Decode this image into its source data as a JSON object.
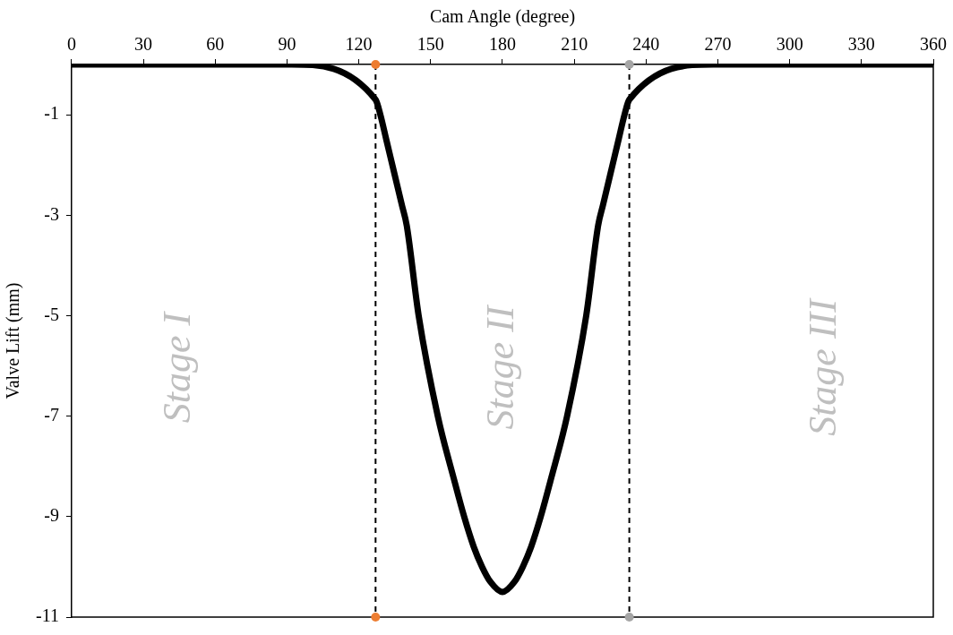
{
  "chart_data": {
    "type": "line",
    "xlabel": "Cam Angle (degree)",
    "ylabel": "Valve Lift (mm)",
    "xlim": [
      0,
      360
    ],
    "xticks": [
      0,
      30,
      60,
      90,
      120,
      150,
      180,
      210,
      240,
      270,
      300,
      330,
      360
    ],
    "ylim": [
      -11,
      0
    ],
    "yticks": [
      -11,
      -9,
      -7,
      -5,
      -3,
      -1
    ],
    "grid": false,
    "legend": false,
    "series": [
      {
        "color": "#000000",
        "marker": "none",
        "line_style": "solid",
        "x": [
          0,
          92,
          127,
          129,
          131.5,
          135,
          138,
          140,
          145,
          153,
          160,
          164,
          168,
          171.5,
          175,
          180,
          185,
          188.5,
          192,
          196,
          200,
          207,
          215,
          220,
          222,
          225,
          228.5,
          231,
          233,
          268,
          360
        ],
        "values": [
          0,
          0,
          -0.7,
          -1.0,
          -1.5,
          -2.2,
          -2.8,
          -3.2,
          -5,
          -7,
          -8.3,
          -9,
          -9.6,
          -10,
          -10.3,
          -10.5,
          -10.3,
          -10,
          -9.6,
          -9,
          -8.3,
          -7,
          -5,
          -3.2,
          -2.8,
          -2.2,
          -1.5,
          -1.0,
          -0.7,
          0,
          0
        ]
      },
      {
        "type": "scatter",
        "color": "#ed7d31",
        "marker": "circle",
        "x": [
          127,
          127
        ],
        "values": [
          0,
          -11
        ]
      },
      {
        "type": "scatter",
        "color": "#a5a5a5",
        "marker": "circle",
        "x": [
          233,
          233
        ],
        "values": [
          0,
          -11
        ]
      }
    ],
    "ref_lines": [
      {
        "axis": "x",
        "value": 127,
        "color": "#000000",
        "line_style": "dashed"
      },
      {
        "axis": "x",
        "value": 233,
        "color": "#000000",
        "line_style": "dashed"
      }
    ],
    "annotations": [
      "Stage I",
      "Stage II",
      "Stage III"
    ]
  }
}
